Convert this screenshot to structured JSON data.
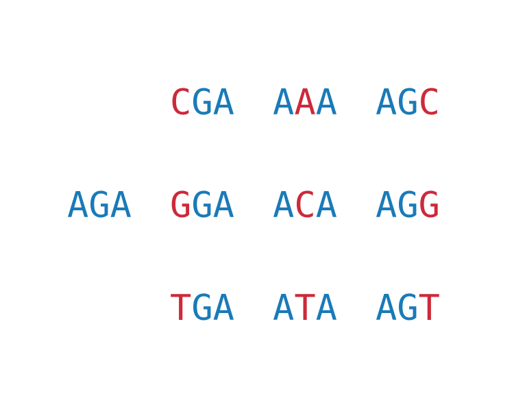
{
  "colors": {
    "base": "#1a7ab8",
    "highlight": "#cc2a3a"
  },
  "diagram": {
    "reference_codon": {
      "bases": [
        "A",
        "G",
        "A"
      ],
      "highlight": [
        false,
        false,
        false
      ]
    },
    "rows": [
      {
        "codons": [
          {
            "bases": [
              "C",
              "G",
              "A"
            ],
            "highlight": [
              true,
              false,
              false
            ]
          },
          {
            "bases": [
              "A",
              "A",
              "A"
            ],
            "highlight": [
              false,
              true,
              false
            ]
          },
          {
            "bases": [
              "A",
              "G",
              "C"
            ],
            "highlight": [
              false,
              false,
              true
            ]
          }
        ]
      },
      {
        "codons": [
          {
            "bases": [
              "G",
              "G",
              "A"
            ],
            "highlight": [
              true,
              false,
              false
            ]
          },
          {
            "bases": [
              "A",
              "C",
              "A"
            ],
            "highlight": [
              false,
              true,
              false
            ]
          },
          {
            "bases": [
              "A",
              "G",
              "G"
            ],
            "highlight": [
              false,
              false,
              true
            ]
          }
        ]
      },
      {
        "codons": [
          {
            "bases": [
              "T",
              "G",
              "A"
            ],
            "highlight": [
              true,
              false,
              false
            ]
          },
          {
            "bases": [
              "A",
              "T",
              "A"
            ],
            "highlight": [
              false,
              true,
              false
            ]
          },
          {
            "bases": [
              "A",
              "G",
              "T"
            ],
            "highlight": [
              false,
              false,
              true
            ]
          }
        ]
      }
    ]
  }
}
